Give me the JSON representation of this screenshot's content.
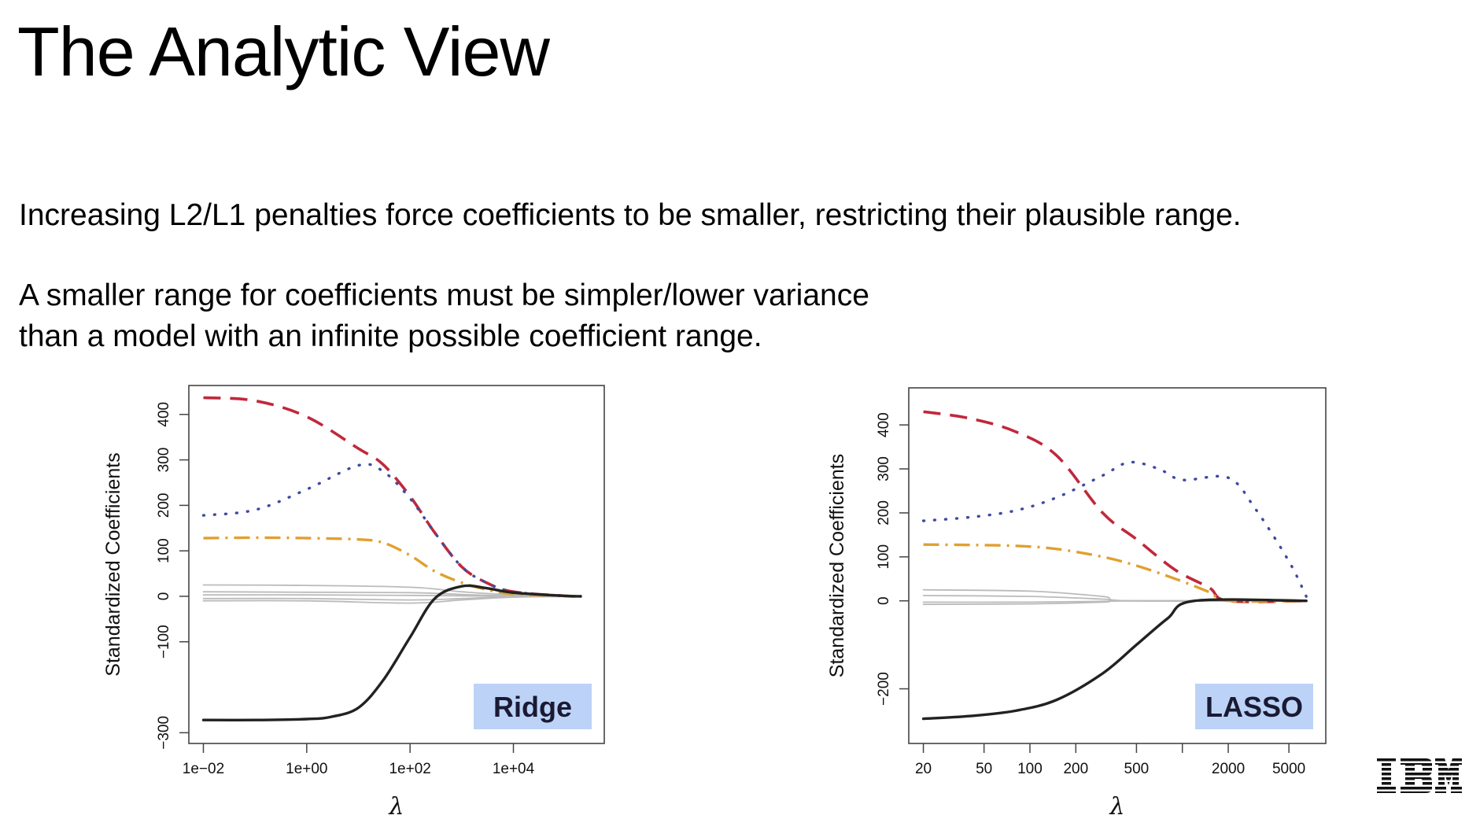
{
  "slide": {
    "title": "The Analytic View",
    "paragraph_1": "Increasing L2/L1 penalties force coefficients to be smaller, restricting their plausible range.",
    "paragraph_2_line_1": "A smaller range for coefficients must be simpler/lower variance",
    "paragraph_2_line_2": "than a model with an infinite possible coefficient range.",
    "logo": "IBM"
  },
  "colors": {
    "income": "#c0283c",
    "limit": "#3f4aa0",
    "rating": "#e0a030",
    "student": "#222222",
    "others": "#bbbbbb",
    "badge": "#bcd3f7"
  },
  "chart_data": [
    {
      "type": "line",
      "label": "Ridge",
      "xscale": "log",
      "xlabel": "λ",
      "ylabel": "Standardized Coefficients",
      "xlim": [
        0.01,
        300000
      ],
      "ylim": [
        -300,
        440
      ],
      "yticks": [
        -300,
        -100,
        0,
        100,
        200,
        300,
        400
      ],
      "ytick_labels": [
        "−300",
        "−100",
        "0",
        "100",
        "200",
        "300",
        "400"
      ],
      "xticks": [
        0.01,
        1,
        100,
        10000
      ],
      "xtick_labels": [
        "1e−02",
        "1e+00",
        "1e+02",
        "1e+04"
      ],
      "series": [
        {
          "style": "income",
          "x": [
            0.01,
            0.1,
            1,
            10,
            30,
            100,
            300,
            1000,
            3000,
            10000,
            100000,
            200000
          ],
          "y": [
            437,
            430,
            395,
            325,
            290,
            220,
            140,
            65,
            30,
            10,
            1,
            0
          ]
        },
        {
          "style": "limit",
          "x": [
            0.01,
            0.1,
            1,
            10,
            30,
            100,
            300,
            1000,
            3000,
            10000,
            100000,
            200000
          ],
          "y": [
            178,
            190,
            235,
            288,
            275,
            215,
            140,
            65,
            30,
            10,
            1,
            0
          ]
        },
        {
          "style": "rating",
          "x": [
            0.01,
            0.1,
            1,
            10,
            30,
            100,
            300,
            1000,
            3000,
            10000,
            100000,
            200000
          ],
          "y": [
            128,
            129,
            128,
            125,
            118,
            90,
            55,
            30,
            15,
            5,
            1,
            0
          ]
        },
        {
          "style": "student",
          "x": [
            0.01,
            0.1,
            1,
            3,
            10,
            30,
            100,
            300,
            1000,
            3000,
            10000,
            100000,
            200000
          ],
          "y": [
            -272,
            -272,
            -270,
            -265,
            -245,
            -185,
            -90,
            -5,
            22,
            18,
            8,
            1,
            0
          ]
        },
        {
          "style": "others",
          "x": [
            0.01,
            1,
            100,
            1000,
            10000,
            200000
          ],
          "y": [
            25,
            24,
            20,
            10,
            3,
            0
          ]
        },
        {
          "style": "others",
          "x": [
            0.01,
            1,
            100,
            1000,
            10000,
            200000
          ],
          "y": [
            10,
            9,
            8,
            4,
            1,
            0
          ]
        },
        {
          "style": "others",
          "x": [
            0.01,
            1,
            100,
            1000,
            10000,
            200000
          ],
          "y": [
            3,
            3,
            2,
            1,
            0,
            0
          ]
        },
        {
          "style": "others",
          "x": [
            0.01,
            1,
            100,
            1000,
            10000,
            200000
          ],
          "y": [
            -5,
            -5,
            -8,
            -5,
            -1,
            0
          ]
        },
        {
          "style": "others",
          "x": [
            0.01,
            1,
            100,
            1000,
            10000,
            200000
          ],
          "y": [
            -10,
            -10,
            -15,
            -8,
            -2,
            0
          ]
        }
      ]
    },
    {
      "type": "line",
      "label": "LASSO",
      "xscale": "log",
      "xlabel": "λ",
      "ylabel": "Standardized Coefficients",
      "xlim": [
        20,
        7000
      ],
      "ylim": [
        -300,
        460
      ],
      "yticks": [
        -200,
        0,
        100,
        200,
        300,
        400
      ],
      "ytick_labels": [
        "−200",
        "0",
        "100",
        "200",
        "300",
        "400"
      ],
      "xticks": [
        20,
        50,
        100,
        200,
        500,
        1000,
        2000,
        5000
      ],
      "xtick_labels": [
        "20",
        "50",
        "100",
        "200",
        "500",
        "",
        "2000",
        "5000"
      ],
      "series": [
        {
          "style": "income",
          "x": [
            20,
            40,
            80,
            150,
            300,
            500,
            900,
            1500,
            2000,
            6500
          ],
          "y": [
            430,
            415,
            385,
            330,
            200,
            140,
            70,
            30,
            0,
            0
          ]
        },
        {
          "style": "limit",
          "x": [
            20,
            40,
            80,
            150,
            300,
            450,
            700,
            1000,
            2000,
            3000,
            5000,
            6500
          ],
          "y": [
            182,
            190,
            205,
            235,
            285,
            315,
            300,
            275,
            280,
            210,
            90,
            10
          ]
        },
        {
          "style": "rating",
          "x": [
            20,
            40,
            80,
            150,
            300,
            500,
            900,
            1500,
            2000,
            6500
          ],
          "y": [
            128,
            127,
            125,
            118,
            100,
            80,
            50,
            20,
            0,
            0
          ]
        },
        {
          "style": "student",
          "x": [
            20,
            40,
            80,
            150,
            300,
            500,
            800,
            1200,
            6500
          ],
          "y": [
            -268,
            -262,
            -250,
            -225,
            -165,
            -100,
            -40,
            0,
            0
          ]
        },
        {
          "style": "others",
          "x": [
            20,
            100,
            300,
            450,
            6500
          ],
          "y": [
            25,
            22,
            10,
            0,
            0
          ]
        },
        {
          "style": "others",
          "x": [
            20,
            100,
            300,
            450,
            6500
          ],
          "y": [
            12,
            10,
            4,
            0,
            0
          ]
        },
        {
          "style": "others",
          "x": [
            20,
            100,
            300,
            450,
            6500
          ],
          "y": [
            -3,
            -3,
            -1,
            0,
            0
          ]
        },
        {
          "style": "others",
          "x": [
            20,
            100,
            300,
            450,
            6500
          ],
          "y": [
            -8,
            -7,
            -3,
            0,
            0
          ]
        }
      ]
    }
  ]
}
